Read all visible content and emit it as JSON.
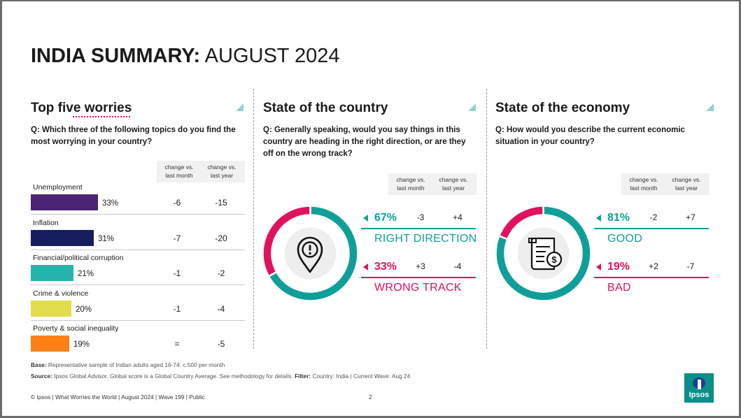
{
  "title": {
    "bold": "INDIA SUMMARY:",
    "light": "AUGUST 2024"
  },
  "worries": {
    "heading": "Top five worries",
    "question": "Q: Which three of the following topics do you find the most worrying in your country?",
    "change_month": "change vs. last month",
    "change_year": "change vs. last year"
  },
  "country": {
    "heading": "State of the country",
    "question": "Q: Generally speaking, would you say things in this country are heading in the right direction, or are they off on the wrong track?",
    "change_month": "change vs. last month",
    "change_year": "change vs. last year",
    "rows": [
      {
        "pct": "67%",
        "label": "RIGHT DIRECTION",
        "month": "-3",
        "year": "+4"
      },
      {
        "pct": "33%",
        "label": "WRONG TRACK",
        "month": "+3",
        "year": "-4"
      }
    ]
  },
  "economy": {
    "heading": "State of the economy",
    "question": "Q: How would you describe the current economic situation in your country?",
    "change_month": "change vs. last month",
    "change_year": "change vs. last year",
    "rows": [
      {
        "pct": "81%",
        "label": "GOOD",
        "month": "-2",
        "year": "+7"
      },
      {
        "pct": "19%",
        "label": "BAD",
        "month": "+2",
        "year": "-7"
      }
    ]
  },
  "chart_data": [
    {
      "type": "bar",
      "title": "Top five worries",
      "categories": [
        "Unemployment",
        "Inflation",
        "Financial/political corruption",
        "Crime & violence",
        "Poverty & social inequality"
      ],
      "values": [
        33,
        31,
        21,
        20,
        19
      ],
      "value_labels": [
        "33%",
        "31%",
        "21%",
        "20%",
        "19%"
      ],
      "change_last_month": [
        "-6",
        "-7",
        "-1",
        "-1",
        "="
      ],
      "change_last_year": [
        "-15",
        "-20",
        "-2",
        "-4",
        "-5"
      ],
      "colors": [
        "#4b2375",
        "#161d5e",
        "#26b3ad",
        "#e3dc4b",
        "#ff7f17"
      ]
    },
    {
      "type": "pie",
      "title": "State of the country",
      "categories": [
        "RIGHT DIRECTION",
        "WRONG TRACK"
      ],
      "values": [
        67,
        33
      ],
      "colors": [
        "#109f98",
        "#e0125f"
      ]
    },
    {
      "type": "pie",
      "title": "State of the economy",
      "categories": [
        "GOOD",
        "BAD"
      ],
      "values": [
        81,
        19
      ],
      "colors": [
        "#109f98",
        "#e0125f"
      ]
    }
  ],
  "footer": {
    "base_label": "Base:",
    "base_text": "Representative sample of Indian adults aged 16-74: c.500 per month",
    "source_label": "Source:",
    "source_text": "Ipsos Global Advisor. Global score is a Global Country Average. See methodology for details.",
    "filter_label": "Filter:",
    "filter_text": "Country: India | Current Wave: Aug 24",
    "copyright": "© Ipsos | What Worries the World | August 2024 | Wave 199 | Public",
    "page": "2",
    "logo_text": "Ipsos"
  }
}
